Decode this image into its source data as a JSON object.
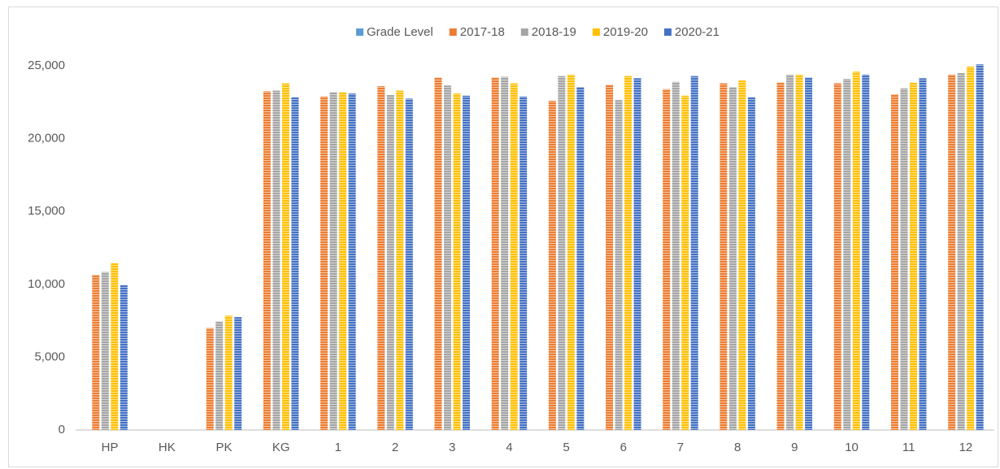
{
  "chart_data": {
    "type": "bar",
    "categories": [
      "HP",
      "HK",
      "PK",
      "KG",
      "1",
      "2",
      "3",
      "4",
      "5",
      "6",
      "7",
      "8",
      "9",
      "10",
      "11",
      "12"
    ],
    "series": [
      {
        "name": "Grade Level",
        "color": "#5b9bd5",
        "values": [
          null,
          null,
          null,
          null,
          null,
          null,
          null,
          null,
          null,
          null,
          null,
          null,
          null,
          null,
          null,
          null
        ]
      },
      {
        "name": "2017-18",
        "color": "#ed7d31",
        "values": [
          10650,
          null,
          7000,
          23250,
          22900,
          23600,
          24200,
          24200,
          22600,
          23700,
          23400,
          23800,
          23850,
          23800,
          23050,
          24400
        ]
      },
      {
        "name": "2018-19",
        "color": "#a5a5a5",
        "values": [
          10850,
          null,
          7450,
          23300,
          23200,
          23000,
          23650,
          24250,
          24300,
          22650,
          23900,
          23550,
          24400,
          24100,
          23450,
          24500
        ]
      },
      {
        "name": "2019-20",
        "color": "#ffc000",
        "values": [
          11450,
          null,
          7850,
          23800,
          23200,
          23300,
          23100,
          23800,
          24400,
          24300,
          22950,
          24000,
          24400,
          24600,
          23850,
          24950
        ]
      },
      {
        "name": "2020-21",
        "color": "#4472c4",
        "values": [
          9950,
          null,
          7750,
          22850,
          23100,
          22750,
          22950,
          22900,
          23550,
          24150,
          24300,
          22850,
          24200,
          24400,
          24150,
          25100
        ]
      }
    ],
    "ylim": [
      0,
      25000
    ],
    "yticks": [
      0,
      {
        "value": 5000,
        "label": "5,000"
      },
      {
        "value": 10000,
        "label": "10,000"
      },
      {
        "value": 15000,
        "label": "15,000"
      },
      {
        "value": 20000,
        "label": "20,000"
      },
      {
        "value": 25000,
        "label": "25,000"
      }
    ],
    "grid": false,
    "legend": "top"
  }
}
